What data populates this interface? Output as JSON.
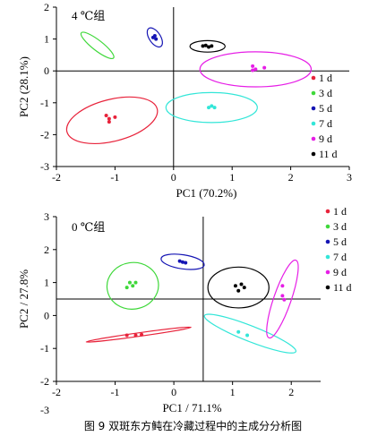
{
  "caption": "图 9 双斑东方鲀在冷藏过程中的主成分分析图",
  "legend_labels": [
    "1 d",
    "3 d",
    "5 d",
    "7 d",
    "9 d",
    "11 d"
  ],
  "colors": {
    "1 d": "#e8233b",
    "3 d": "#3fd83a",
    "5 d": "#1515b4",
    "7 d": "#33e6d8",
    "9 d": "#e61ee6",
    "11 d": "#000000"
  },
  "chart_data": [
    {
      "type": "scatter",
      "title": "4 ℃组",
      "xlabel": "PC1 (70.2%)",
      "ylabel": "PC2 (28.1%)",
      "xlim": [
        -2,
        3
      ],
      "ylim": [
        -3,
        2
      ],
      "xticks": [
        "-2",
        "-1",
        "0",
        "1",
        "2",
        "3"
      ],
      "yticks": [
        "-3",
        "-2",
        "-1",
        "0",
        "1",
        "2"
      ],
      "legend_position": "right",
      "series": [
        {
          "name": "1 d",
          "points": [
            [
              -1.15,
              -1.4
            ],
            [
              -1.1,
              -1.5
            ],
            [
              -1.0,
              -1.45
            ],
            [
              -1.1,
              -1.6
            ]
          ],
          "ellipse": {
            "cx": -1.05,
            "cy": -1.55,
            "rx": 0.85,
            "ry": 0.55,
            "angle_deg": 25
          }
        },
        {
          "name": "3 d",
          "points": [],
          "ellipse": {
            "cx": -1.3,
            "cy": 0.8,
            "rx": 0.48,
            "ry": 0.1,
            "angle_deg": -55
          }
        },
        {
          "name": "5 d",
          "points": [
            [
              -0.35,
              1.05
            ],
            [
              -0.3,
              1.0
            ],
            [
              -0.32,
              1.1
            ]
          ],
          "ellipse": {
            "cx": -0.32,
            "cy": 1.05,
            "rx": 0.3,
            "ry": 0.1,
            "angle_deg": -70
          }
        },
        {
          "name": "7 d",
          "points": [
            [
              0.6,
              -1.15
            ],
            [
              0.65,
              -1.1
            ],
            [
              0.7,
              -1.15
            ]
          ],
          "ellipse": {
            "cx": 0.65,
            "cy": -1.15,
            "rx": 0.78,
            "ry": 0.47,
            "angle_deg": 0
          }
        },
        {
          "name": "9 d",
          "points": [
            [
              1.35,
              0.15
            ],
            [
              1.4,
              0.05
            ],
            [
              1.55,
              0.1
            ],
            [
              1.35,
              0.02
            ]
          ],
          "ellipse": {
            "cx": 1.4,
            "cy": 0.05,
            "rx": 0.95,
            "ry": 0.55,
            "angle_deg": 0
          }
        },
        {
          "name": "11 d",
          "points": [
            [
              0.55,
              0.8
            ],
            [
              0.6,
              0.75
            ],
            [
              0.65,
              0.78
            ],
            [
              0.5,
              0.78
            ]
          ],
          "ellipse": {
            "cx": 0.58,
            "cy": 0.77,
            "rx": 0.3,
            "ry": 0.18,
            "angle_deg": 0
          }
        }
      ]
    },
    {
      "type": "scatter",
      "title": "0 ℃组",
      "xlabel": "PC1 / 71.1%",
      "ylabel": "PC2 / 27.8%",
      "xlim": [
        -2,
        2.5
      ],
      "ylim": [
        -2,
        3
      ],
      "xticks": [
        "-2",
        "-1",
        "0",
        "1",
        "2"
      ],
      "yticks": [
        "-2",
        "-1",
        "0",
        "1",
        "2",
        "3"
      ],
      "extra_tick": "-3",
      "legend_position": "top-right",
      "series": [
        {
          "name": "1 d",
          "points": [
            [
              -0.8,
              -0.6
            ],
            [
              -0.65,
              -0.6
            ],
            [
              -0.55,
              -0.58
            ]
          ],
          "ellipse": {
            "cx": -0.6,
            "cy": -0.58,
            "rx": 0.92,
            "ry": 0.05,
            "angle_deg": 14
          }
        },
        {
          "name": "3 d",
          "points": [
            [
              -0.75,
              1.0
            ],
            [
              -0.7,
              0.9
            ],
            [
              -0.65,
              1.0
            ],
            [
              -0.8,
              0.85
            ]
          ],
          "ellipse": {
            "cx": -0.7,
            "cy": 0.9,
            "rx": 0.45,
            "ry": 0.66,
            "angle_deg": 15
          }
        },
        {
          "name": "5 d",
          "points": [
            [
              0.1,
              1.65
            ],
            [
              0.15,
              1.62
            ],
            [
              0.2,
              1.6
            ]
          ],
          "ellipse": {
            "cx": 0.15,
            "cy": 1.63,
            "rx": 0.38,
            "ry": 0.2,
            "angle_deg": -15
          }
        },
        {
          "name": "7 d",
          "points": [
            [
              1.1,
              -0.5
            ],
            [
              1.25,
              -0.6
            ]
          ],
          "ellipse": {
            "cx": 1.3,
            "cy": -0.55,
            "rx": 0.95,
            "ry": 0.18,
            "angle_deg": -35
          }
        },
        {
          "name": "9 d",
          "points": [
            [
              1.85,
              0.9
            ],
            [
              1.85,
              0.6
            ],
            [
              1.88,
              0.48
            ]
          ],
          "ellipse": {
            "cx": 1.85,
            "cy": 0.5,
            "rx": 1.2,
            "ry": 0.15,
            "angle_deg": 79
          }
        },
        {
          "name": "11 d",
          "points": [
            [
              1.05,
              0.9
            ],
            [
              1.15,
              0.95
            ],
            [
              1.1,
              0.75
            ],
            [
              1.2,
              0.85
            ]
          ],
          "ellipse": {
            "cx": 1.1,
            "cy": 0.85,
            "rx": 0.52,
            "ry": 0.62,
            "angle_deg": 0
          }
        }
      ]
    }
  ]
}
